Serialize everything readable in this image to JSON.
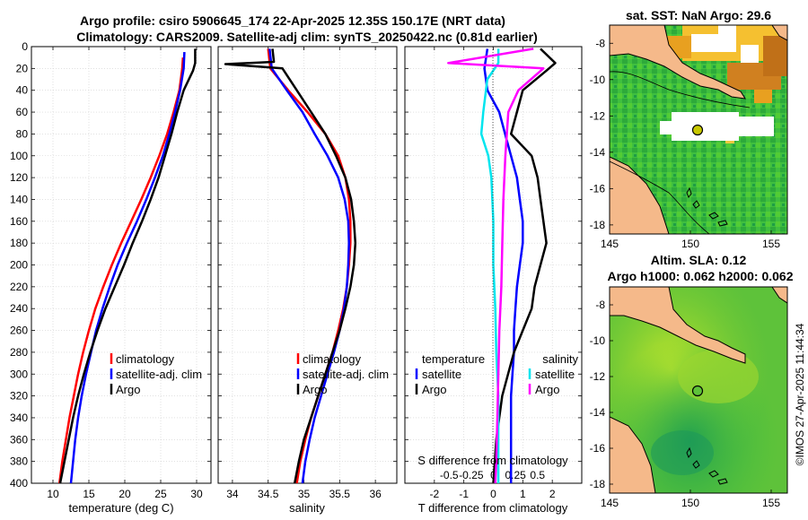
{
  "titles": {
    "line1": "Argo profile: csiro 5906645_174 22-Apr-2025 12.35S 150.17E (NRT data)",
    "line2": "Climatology: CARS2009. Satellite-adj clim: synTS_20250422.nc (0.81d earlier)"
  },
  "credit": "©IMOS 27-Apr-2025 11:44:34",
  "colors": {
    "climatology": "#ff0000",
    "satellite": "#0000ff",
    "argo": "#000000",
    "sal_diff": "#ff00ff",
    "sal_sat_diff": "#00e5ee"
  },
  "chart_data": [
    {
      "id": "temperature",
      "type": "line",
      "xlabel": "temperature (deg C)",
      "ylabel": "",
      "xlim": [
        7,
        32
      ],
      "ylim": [
        400,
        0
      ],
      "xticks": [
        10,
        15,
        20,
        25,
        30
      ],
      "yticks": [
        0,
        20,
        40,
        60,
        80,
        100,
        120,
        140,
        160,
        180,
        200,
        220,
        240,
        260,
        280,
        300,
        320,
        340,
        360,
        380,
        400
      ],
      "grid": true,
      "legend": [
        "climatology",
        "satellite-adj. clim",
        "Argo"
      ],
      "series": [
        {
          "name": "climatology",
          "color": "#ff0000",
          "x": [
            28.1,
            28.0,
            27.6,
            26.8,
            25.9,
            24.8,
            23.6,
            22.3,
            20.9,
            19.5,
            18.2,
            17.0,
            15.9,
            15.0,
            14.2,
            13.5,
            12.9,
            12.3,
            11.8,
            11.3,
            10.9
          ],
          "y": [
            10,
            20,
            40,
            60,
            80,
            100,
            120,
            140,
            160,
            180,
            200,
            220,
            240,
            260,
            280,
            300,
            320,
            340,
            360,
            380,
            400
          ]
        },
        {
          "name": "satellite-adj. clim",
          "color": "#0000ff",
          "x": [
            28.3,
            28.2,
            27.7,
            27.0,
            26.2,
            25.3,
            24.2,
            23.0,
            21.7,
            20.3,
            19.0,
            17.9,
            16.9,
            16.0,
            15.3,
            14.6,
            14.0,
            13.5,
            13.1,
            12.8,
            12.5
          ],
          "y": [
            5,
            20,
            40,
            60,
            80,
            100,
            120,
            140,
            160,
            180,
            200,
            220,
            240,
            260,
            280,
            300,
            320,
            340,
            360,
            380,
            400
          ]
        },
        {
          "name": "Argo",
          "color": "#000000",
          "x": [
            29.8,
            29.8,
            29.5,
            28.2,
            27.3,
            26.5,
            25.6,
            24.7,
            23.6,
            22.4,
            21.1,
            19.9,
            18.6,
            17.3,
            16.2,
            15.2,
            14.3,
            13.5,
            12.8,
            12.2,
            11.6,
            11.0
          ],
          "y": [
            2,
            15,
            22,
            40,
            60,
            80,
            100,
            120,
            140,
            160,
            180,
            200,
            220,
            240,
            260,
            280,
            300,
            320,
            340,
            360,
            380,
            400
          ]
        }
      ]
    },
    {
      "id": "salinity",
      "type": "line",
      "xlabel": "salinity",
      "ylabel": "",
      "xlim": [
        33.8,
        36.3
      ],
      "ylim": [
        400,
        0
      ],
      "xticks": [
        34,
        34.5,
        35,
        35.5,
        36
      ],
      "grid": true,
      "legend": [
        "climatology",
        "satellite-adj. clim",
        "Argo"
      ],
      "series": [
        {
          "name": "climatology",
          "color": "#ff0000",
          "x": [
            34.5,
            34.53,
            34.78,
            35.05,
            35.3,
            35.48,
            35.58,
            35.63,
            35.65,
            35.65,
            35.63,
            35.6,
            35.55,
            35.48,
            35.4,
            35.3,
            35.2,
            35.1,
            35.02,
            34.95,
            34.9
          ],
          "y": [
            2,
            20,
            40,
            60,
            80,
            100,
            120,
            140,
            160,
            180,
            200,
            220,
            240,
            260,
            280,
            300,
            320,
            340,
            360,
            380,
            400
          ]
        },
        {
          "name": "satellite-adj. clim",
          "color": "#0000ff",
          "x": [
            34.52,
            34.55,
            34.76,
            34.98,
            35.15,
            35.33,
            35.48,
            35.57,
            35.62,
            35.63,
            35.62,
            35.6,
            35.56,
            35.5,
            35.42,
            35.33,
            35.24,
            35.15,
            35.08,
            35.02,
            34.98
          ],
          "y": [
            2,
            20,
            40,
            60,
            80,
            100,
            120,
            140,
            160,
            180,
            200,
            220,
            240,
            260,
            280,
            300,
            320,
            340,
            360,
            380,
            400
          ]
        },
        {
          "name": "Argo",
          "color": "#000000",
          "x": [
            34.56,
            34.58,
            33.9,
            34.7,
            34.9,
            35.1,
            35.3,
            35.45,
            35.58,
            35.66,
            35.7,
            35.72,
            35.7,
            35.65,
            35.58,
            35.5,
            35.4,
            35.3,
            35.2,
            35.1,
            35.0,
            34.93,
            34.87
          ],
          "y": [
            2,
            14,
            16,
            20,
            40,
            60,
            80,
            100,
            120,
            140,
            160,
            180,
            200,
            220,
            240,
            260,
            280,
            300,
            320,
            340,
            360,
            380,
            400
          ]
        }
      ]
    },
    {
      "id": "difference",
      "type": "line",
      "xlabel": "T difference from climatology",
      "xlabel_top": "S difference from climatology",
      "xlim": [
        -3,
        3
      ],
      "ylim": [
        400,
        0
      ],
      "xticks_T": [
        -2,
        -1,
        0,
        1,
        2
      ],
      "xticks_S": [
        -0.5,
        -0.25,
        0,
        0.25,
        0.5
      ],
      "xticks_S_labels": [
        "-0.5",
        "-0.25",
        "0",
        "0.25",
        "0.5"
      ],
      "grid": true,
      "legend_temperature_title": "temperature",
      "legend_salinity_title": "salinity",
      "legend_temperature": [
        "satellite",
        "Argo"
      ],
      "legend_salinity": [
        "satellite",
        "Argo"
      ],
      "series": [
        {
          "name": "T satellite",
          "color": "#0000ff",
          "x": [
            -0.2,
            -0.3,
            -0.2,
            0.2,
            0.4,
            0.6,
            0.8,
            0.9,
            1.0,
            1.0,
            0.9,
            0.8,
            0.75,
            0.7,
            0.7,
            0.65,
            0.6,
            0.6,
            0.6,
            0.6,
            0.6
          ],
          "y": [
            2,
            20,
            40,
            60,
            80,
            100,
            120,
            140,
            160,
            180,
            200,
            220,
            240,
            260,
            280,
            300,
            320,
            340,
            360,
            380,
            400
          ]
        },
        {
          "name": "T Argo",
          "color": "#000000",
          "x": [
            1.6,
            2.1,
            1.8,
            1.0,
            0.8,
            0.6,
            1.3,
            1.5,
            1.6,
            1.7,
            1.8,
            1.6,
            1.4,
            1.3,
            1.0,
            0.7,
            0.5,
            0.3,
            0.1,
            0.0
          ],
          "y": [
            2,
            15,
            22,
            40,
            60,
            80,
            100,
            120,
            140,
            160,
            180,
            200,
            220,
            240,
            260,
            280,
            300,
            320,
            360,
            400
          ]
        },
        {
          "name": "S satellite",
          "color": "#00e5ee",
          "x": [
            0.05,
            0.05,
            -0.06,
            -0.1,
            -0.12,
            -0.05,
            -0.02,
            0.0,
            0.0,
            0.02,
            0.03,
            0.05,
            0.05
          ],
          "y": [
            2,
            15,
            30,
            60,
            80,
            100,
            120,
            160,
            200,
            240,
            280,
            320,
            400
          ]
        },
        {
          "name": "S Argo",
          "color": "#ff00ff",
          "x": [
            0.4,
            -0.45,
            0.5,
            0.25,
            0.15,
            0.12,
            0.1,
            0.09,
            0.08,
            0.06,
            0.05,
            0.04,
            0.03,
            0.02
          ],
          "y": [
            2,
            15,
            20,
            40,
            60,
            100,
            140,
            180,
            220,
            260,
            300,
            340,
            380,
            400
          ]
        }
      ]
    },
    {
      "id": "sst_map",
      "type": "heatmap",
      "title": "sat. SST: NaN Argo: 29.6",
      "xlim": [
        145,
        156
      ],
      "ylim": [
        -18.5,
        -7
      ],
      "xticks": [
        145,
        150,
        155
      ],
      "yticks": [
        -8,
        -10,
        -12,
        -14,
        -16,
        -18
      ],
      "argo_position": {
        "lon": 150.17,
        "lat": -12.35
      }
    },
    {
      "id": "sla_map",
      "type": "heatmap",
      "title_line1": "Altim. SLA: 0.12",
      "title_line2": "Argo h1000: 0.062 h2000: 0.062",
      "xlim": [
        145,
        156
      ],
      "ylim": [
        -18.5,
        -7
      ],
      "xticks": [
        145,
        150,
        155
      ],
      "yticks": [
        -8,
        -10,
        -12,
        -14,
        -16,
        -18
      ],
      "argo_position": {
        "lon": 150.17,
        "lat": -12.35
      }
    }
  ]
}
